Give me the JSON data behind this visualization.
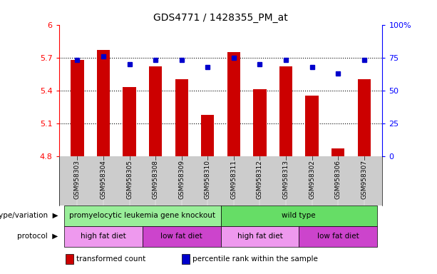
{
  "title": "GDS4771 / 1428355_PM_at",
  "samples": [
    "GSM958303",
    "GSM958304",
    "GSM958305",
    "GSM958308",
    "GSM958309",
    "GSM958310",
    "GSM958311",
    "GSM958312",
    "GSM958313",
    "GSM958302",
    "GSM958306",
    "GSM958307"
  ],
  "bar_values": [
    5.68,
    5.77,
    5.43,
    5.62,
    5.5,
    5.18,
    5.75,
    5.41,
    5.62,
    5.35,
    4.87,
    5.5
  ],
  "dot_values": [
    73,
    76,
    70,
    73,
    73,
    68,
    75,
    70,
    73,
    68,
    63,
    73
  ],
  "ylim_left": [
    4.8,
    6.0
  ],
  "ylim_right": [
    0,
    100
  ],
  "yticks_left": [
    4.8,
    5.1,
    5.4,
    5.7,
    6.0
  ],
  "ytick_labels_left": [
    "4.8",
    "5.1",
    "5.4",
    "5.7",
    "6"
  ],
  "yticks_right": [
    0,
    25,
    50,
    75,
    100
  ],
  "ytick_labels_right": [
    "0",
    "25",
    "50",
    "75",
    "100%"
  ],
  "hlines": [
    5.1,
    5.4,
    5.7
  ],
  "bar_color": "#cc0000",
  "dot_color": "#0000cc",
  "bar_bottom": 4.8,
  "genotype_groups": [
    {
      "label": "promyelocytic leukemia gene knockout",
      "start": 0,
      "end": 6,
      "color": "#99ee99"
    },
    {
      "label": "wild type",
      "start": 6,
      "end": 12,
      "color": "#66dd66"
    }
  ],
  "protocol_groups": [
    {
      "label": "high fat diet",
      "start": 0,
      "end": 3,
      "color": "#ee99ee"
    },
    {
      "label": "low fat diet",
      "start": 3,
      "end": 6,
      "color": "#cc44cc"
    },
    {
      "label": "high fat diet",
      "start": 6,
      "end": 9,
      "color": "#ee99ee"
    },
    {
      "label": "low fat diet",
      "start": 9,
      "end": 12,
      "color": "#cc44cc"
    }
  ],
  "genotype_label": "genotype/variation",
  "protocol_label": "protocol",
  "legend_items": [
    {
      "color": "#cc0000",
      "label": "transformed count"
    },
    {
      "color": "#0000cc",
      "label": "percentile rank within the sample"
    }
  ],
  "xticklabel_bg": "#cccccc",
  "plot_bg_color": "#ffffff"
}
